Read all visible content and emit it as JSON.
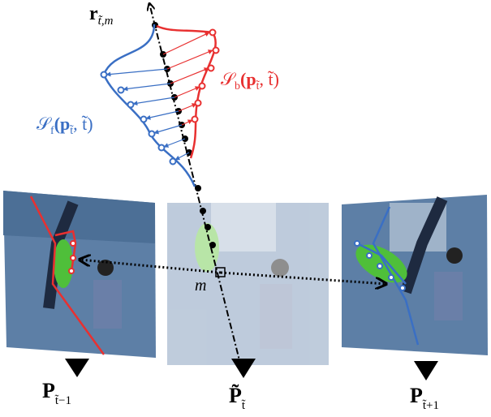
{
  "labels": {
    "ray": {
      "main": "r",
      "sub": "t̃,m"
    },
    "backward": {
      "main": "𝒮",
      "sub": "b",
      "args": "(p",
      "argsub": "t̃",
      "tail": ", t̃)"
    },
    "forward": {
      "main": "𝒮",
      "sub": "f",
      "args": "(p",
      "argsub": "t̃",
      "tail": ", t̃)"
    },
    "point": "m",
    "prev": {
      "main": "P",
      "sub": "t̃−1"
    },
    "current": {
      "main": "P̃",
      "sub": "t̃"
    },
    "next": {
      "main": "P",
      "sub": "t̃+1"
    }
  }
}
